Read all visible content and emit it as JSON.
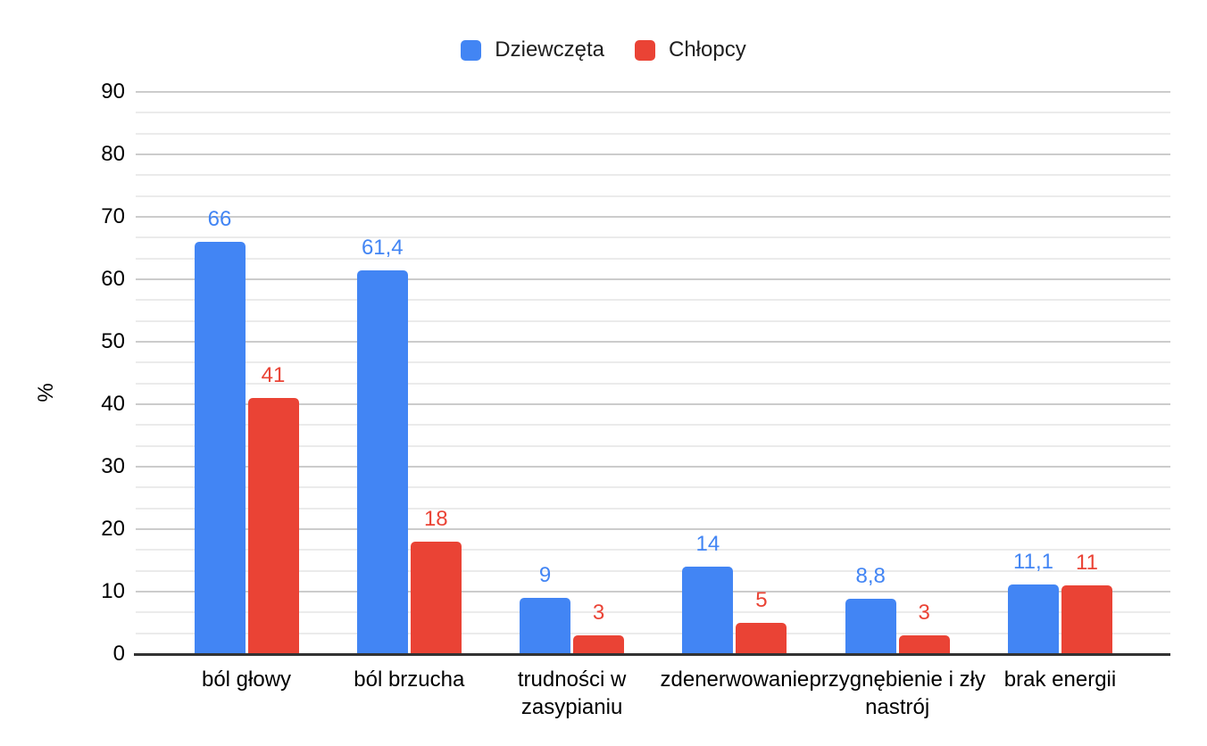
{
  "legend": {
    "items": [
      {
        "label": "Dziewczęta",
        "slug": "dziewczeta",
        "color": "#4285F4"
      },
      {
        "label": "Chłopcy",
        "slug": "chlopcy",
        "color": "#EA4335"
      }
    ]
  },
  "chart_data": {
    "type": "bar",
    "title": "",
    "ylabel": "%",
    "xlabel": "",
    "ylim": [
      0,
      90
    ],
    "yticks": [
      0,
      10,
      20,
      30,
      40,
      50,
      60,
      70,
      80,
      90
    ],
    "minor_gridlines_between_majors": 2,
    "grid": "on",
    "legend_position": "top",
    "categories": [
      "ból głowy",
      "ból brzucha",
      "trudności w zasypianiu",
      "zdenerwowanie",
      "przygnębienie i zły nastrój",
      "brak energii"
    ],
    "category_slugs": [
      "bol-glowy",
      "bol-brzucha",
      "trudnosci-w-zasypianiu",
      "zdenerwowanie",
      "przygnebienie-i-zly-nastroj",
      "brak-energii"
    ],
    "series": [
      {
        "name": "Dziewczęta",
        "slug": "dziewczeta",
        "color": "#4285F4",
        "values": [
          66,
          61.4,
          9,
          14,
          8.8,
          11.1
        ],
        "value_labels": [
          "66",
          "61,4",
          "9",
          "14",
          "8,8",
          "11,1"
        ]
      },
      {
        "name": "Chłopcy",
        "slug": "chlopcy",
        "color": "#EA4335",
        "values": [
          41,
          18,
          3,
          5,
          3,
          11
        ],
        "value_labels": [
          "41",
          "18",
          "3",
          "5",
          "3",
          "11"
        ]
      }
    ],
    "colors": {
      "major_gridline": "#cccccc",
      "minor_gridline": "#ebebeb",
      "axis_line": "#333333",
      "axis_text": "#000000"
    }
  }
}
